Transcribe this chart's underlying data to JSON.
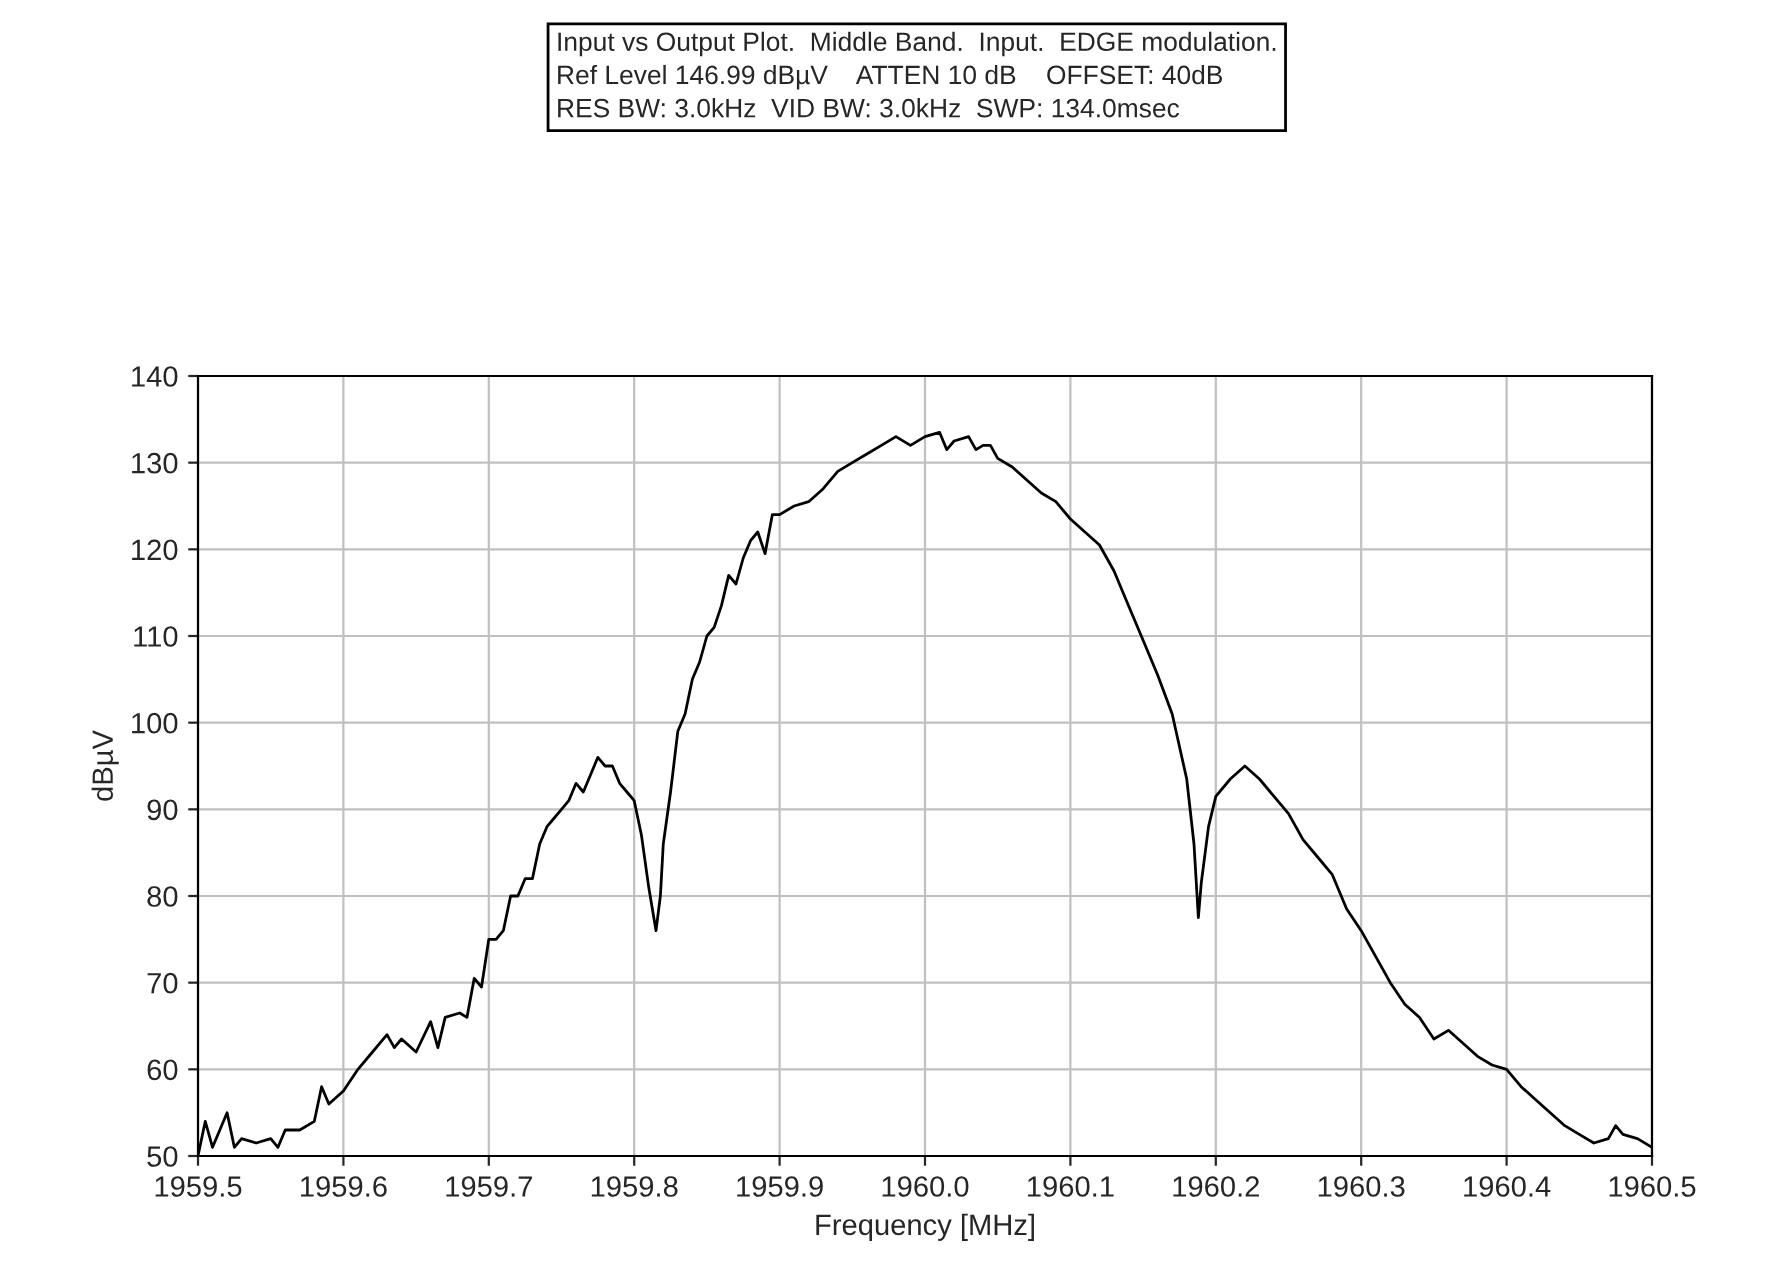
{
  "chart_data": {
    "type": "line",
    "title": "Input vs Output Plot.  Middle Band.  Input.  EDGE modulation.\nRef Level 146.99 dBµV    ATTEN 10 dB    OFFSET: 40dB\nRES BW: 3.0kHz  VID BW: 3.0kHz  SWP: 134.0msec",
    "xlabel": "Frequency [MHz]",
    "ylabel": "dBµV",
    "series": [
      {
        "color": "#000000",
        "x": [
          1959.5,
          1959.505,
          1959.51,
          1959.52,
          1959.525,
          1959.53,
          1959.54,
          1959.55,
          1959.555,
          1959.56,
          1959.57,
          1959.58,
          1959.585,
          1959.59,
          1959.6,
          1959.61,
          1959.62,
          1959.63,
          1959.635,
          1959.64,
          1959.65,
          1959.66,
          1959.665,
          1959.67,
          1959.68,
          1959.685,
          1959.69,
          1959.695,
          1959.7,
          1959.705,
          1959.71,
          1959.715,
          1959.72,
          1959.725,
          1959.73,
          1959.735,
          1959.74,
          1959.745,
          1959.75,
          1959.755,
          1959.76,
          1959.765,
          1959.77,
          1959.775,
          1959.78,
          1959.785,
          1959.79,
          1959.795,
          1959.8,
          1959.805,
          1959.81,
          1959.815,
          1959.818,
          1959.82,
          1959.825,
          1959.83,
          1959.835,
          1959.84,
          1959.845,
          1959.85,
          1959.855,
          1959.86,
          1959.865,
          1959.87,
          1959.875,
          1959.88,
          1959.885,
          1959.89,
          1959.895,
          1959.9,
          1959.91,
          1959.92,
          1959.93,
          1959.94,
          1959.95,
          1959.96,
          1959.97,
          1959.98,
          1959.99,
          1960.0,
          1960.01,
          1960.015,
          1960.02,
          1960.03,
          1960.035,
          1960.04,
          1960.045,
          1960.05,
          1960.06,
          1960.07,
          1960.08,
          1960.09,
          1960.1,
          1960.11,
          1960.12,
          1960.13,
          1960.14,
          1960.15,
          1960.16,
          1960.17,
          1960.18,
          1960.185,
          1960.188,
          1960.19,
          1960.195,
          1960.2,
          1960.21,
          1960.22,
          1960.23,
          1960.24,
          1960.25,
          1960.26,
          1960.27,
          1960.28,
          1960.29,
          1960.3,
          1960.31,
          1960.32,
          1960.33,
          1960.34,
          1960.35,
          1960.36,
          1960.37,
          1960.38,
          1960.39,
          1960.4,
          1960.41,
          1960.42,
          1960.43,
          1960.44,
          1960.45,
          1960.46,
          1960.47,
          1960.475,
          1960.48,
          1960.49,
          1960.5
        ],
        "values": [
          50,
          54,
          51,
          55,
          51,
          52,
          51.5,
          52,
          51,
          53,
          53,
          54,
          58,
          56,
          57.5,
          60,
          62,
          64,
          62.5,
          63.5,
          62,
          65.5,
          62.5,
          66,
          66.5,
          66,
          70.5,
          69.5,
          75,
          75,
          76,
          80,
          80,
          82,
          82,
          86,
          88,
          89,
          90,
          91,
          93,
          92,
          94,
          96,
          95,
          95,
          93,
          92,
          91,
          87,
          81,
          76,
          80,
          86,
          92,
          99,
          101,
          105,
          107,
          110,
          111,
          113.5,
          117,
          116,
          119,
          121,
          122,
          119.5,
          124,
          124,
          125,
          125.5,
          127,
          129,
          130,
          131,
          132,
          133,
          132,
          133,
          133.5,
          131.5,
          132.5,
          133,
          131.5,
          132,
          132,
          130.5,
          129.5,
          128,
          126.5,
          125.5,
          123.5,
          122,
          120.5,
          117.5,
          113.5,
          109.5,
          105.5,
          101,
          93.5,
          86,
          77.5,
          81.5,
          88,
          91.5,
          93.5,
          95,
          93.5,
          91.5,
          89.5,
          86.5,
          84.5,
          82.5,
          78.5,
          76,
          73,
          70,
          67.5,
          66,
          63.5,
          64.5,
          63,
          61.5,
          60.5,
          60,
          58,
          56.5,
          55,
          53.5,
          52.5,
          51.5,
          52,
          53.5,
          52.5,
          52,
          51
        ]
      }
    ],
    "xlim": [
      1959.5,
      1960.5
    ],
    "xticks": [
      {
        "value": 1959.5,
        "label": "1959.5"
      },
      {
        "value": 1959.6,
        "label": "1959.6"
      },
      {
        "value": 1959.7,
        "label": "1959.7"
      },
      {
        "value": 1959.8,
        "label": "1959.8"
      },
      {
        "value": 1959.9,
        "label": "1959.9"
      },
      {
        "value": 1960.0,
        "label": "1960.0"
      },
      {
        "value": 1960.1,
        "label": "1960.1"
      },
      {
        "value": 1960.2,
        "label": "1960.2"
      },
      {
        "value": 1960.3,
        "label": "1960.3"
      },
      {
        "value": 1960.4,
        "label": "1960.4"
      },
      {
        "value": 1960.5,
        "label": "1960.5"
      }
    ],
    "ylim": [
      50,
      140
    ],
    "yticks": [
      50,
      60,
      70,
      80,
      90,
      100,
      110,
      120,
      130,
      140
    ],
    "grid": true,
    "marker": "none",
    "line_style": "solid"
  }
}
